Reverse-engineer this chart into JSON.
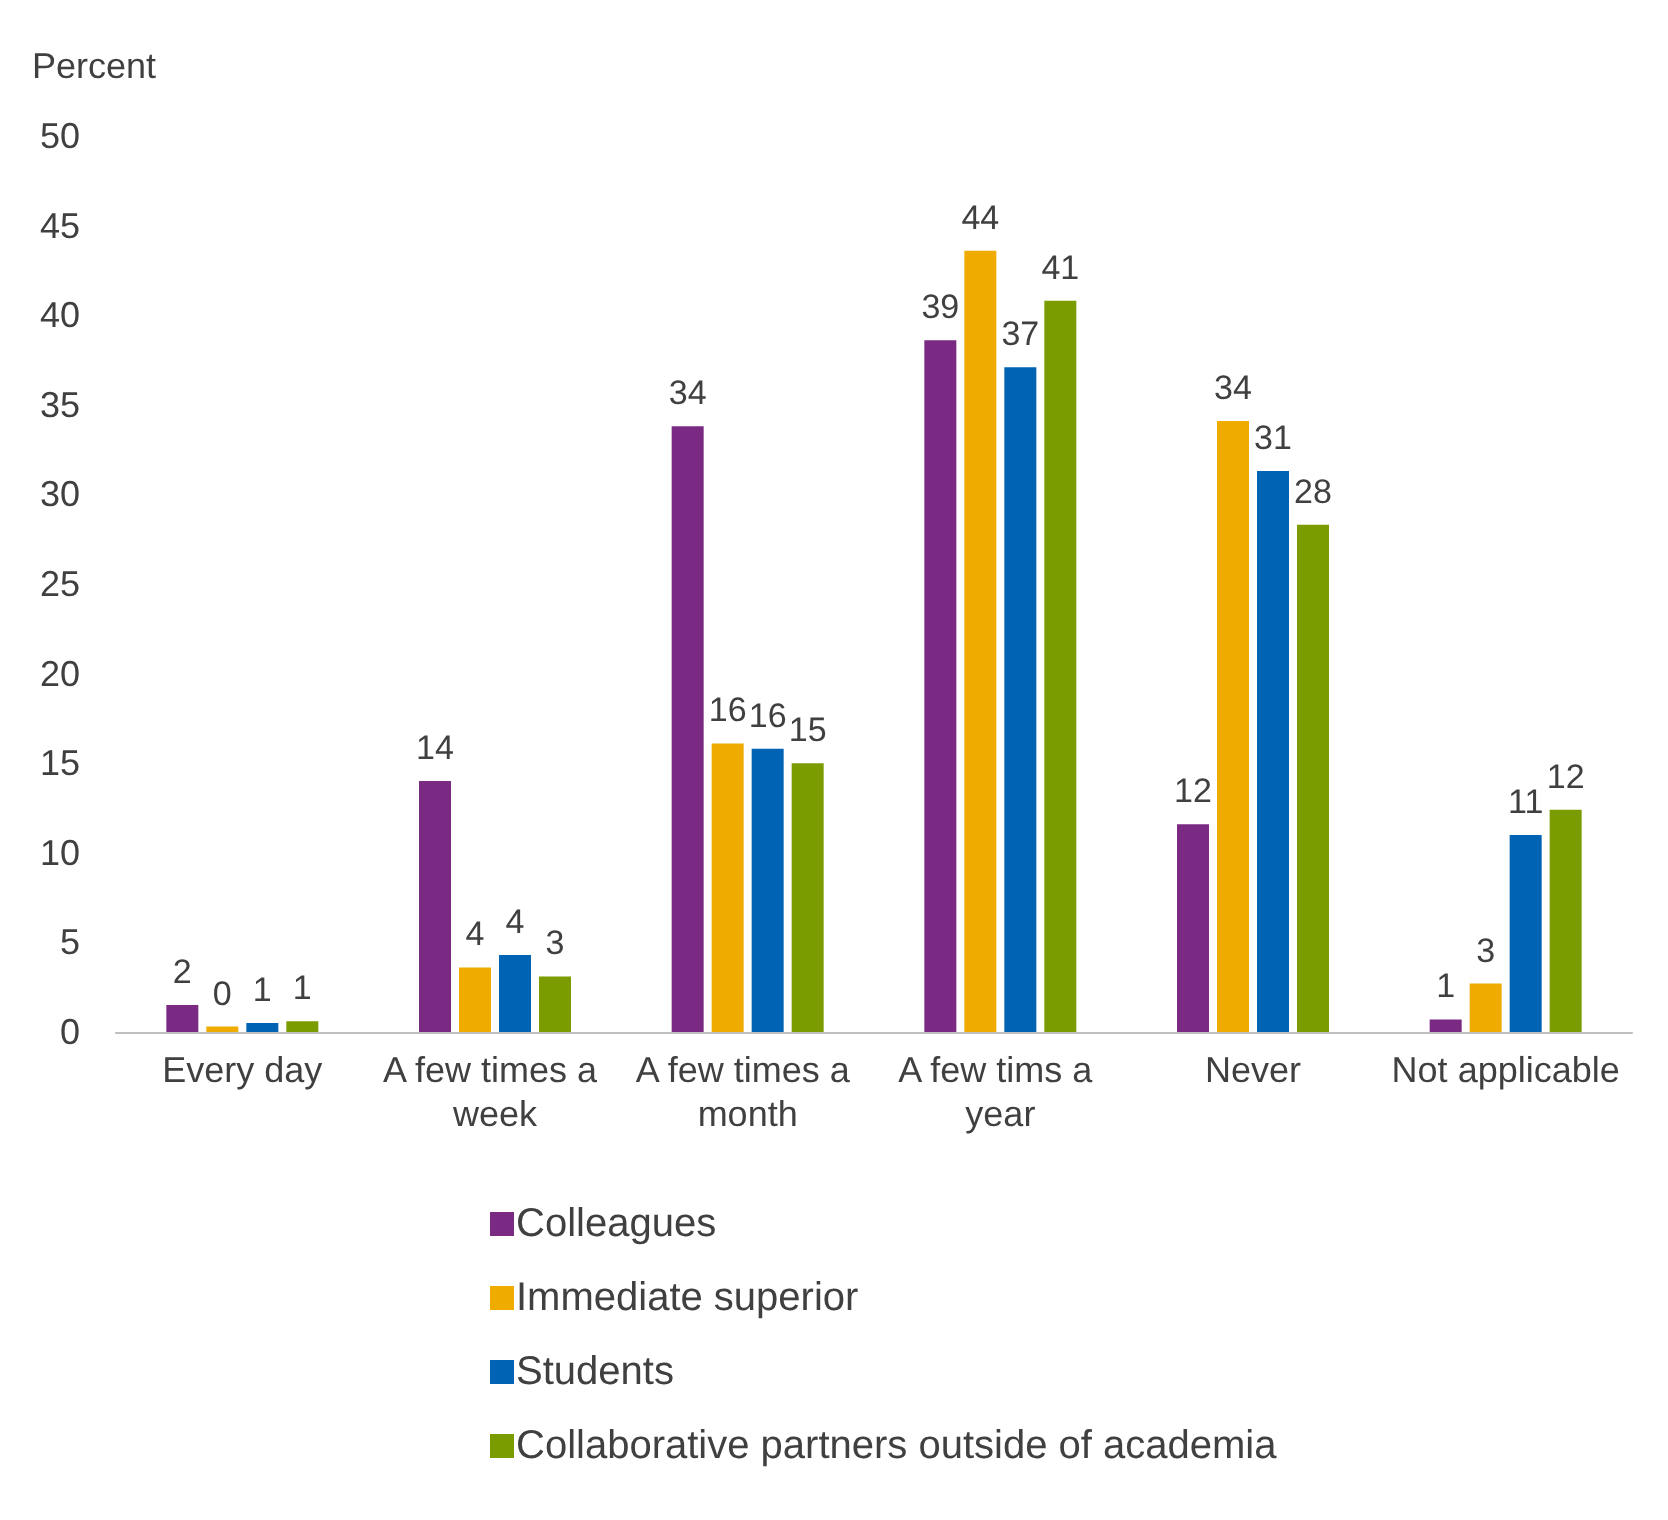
{
  "chart_data": {
    "type": "bar",
    "ylabel": "Percent",
    "categories": [
      "Every day",
      "A few times a week",
      "A few times a month",
      "A few tims a year",
      "Never",
      "Not applicable"
    ],
    "series": [
      {
        "name": "Colleagues",
        "color": "#7b2a83",
        "values": [
          1.5,
          14.0,
          33.8,
          38.6,
          11.6,
          0.7
        ],
        "value_labels": [
          "2",
          "14",
          "34",
          "39",
          "12",
          "1"
        ]
      },
      {
        "name": "Immediate superior",
        "color": "#f0ab00",
        "values": [
          0.3,
          3.6,
          16.1,
          43.6,
          34.1,
          2.7
        ],
        "value_labels": [
          "0",
          "4",
          "16",
          "44",
          "34",
          "3"
        ]
      },
      {
        "name": "Students",
        "color": "#0063b4",
        "values": [
          0.5,
          4.3,
          15.8,
          37.1,
          31.3,
          11.0
        ],
        "value_labels": [
          "1",
          "4",
          "16",
          "37",
          "31",
          "11"
        ]
      },
      {
        "name": "Collaborative partners outside of academia",
        "color": "#7a9c00",
        "values": [
          0.6,
          3.1,
          15.0,
          40.8,
          28.3,
          12.4
        ],
        "value_labels": [
          "1",
          "3",
          "15",
          "41",
          "28",
          "12"
        ]
      }
    ],
    "ylim": [
      0,
      50
    ],
    "yticks": [
      0,
      5,
      10,
      15,
      20,
      25,
      30,
      35,
      40,
      45,
      50
    ],
    "grid": false,
    "legend": "bottom"
  }
}
